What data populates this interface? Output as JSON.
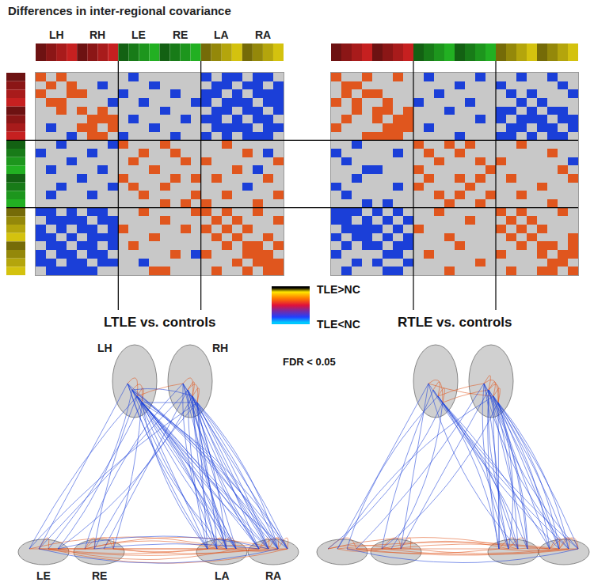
{
  "title": "Differences in inter-regional covariance",
  "regions": [
    {
      "name": "LH",
      "color": "#c62020"
    },
    {
      "name": "RH",
      "color": "#c62020"
    },
    {
      "name": "LE",
      "color": "#22b022"
    },
    {
      "name": "RE",
      "color": "#22b022"
    },
    {
      "name": "LA",
      "color": "#d4c20e"
    },
    {
      "name": "RA",
      "color": "#d4c20e"
    }
  ],
  "color_key": {
    "high_label": "TLE>NC",
    "low_label": "TLE<NC",
    "note": "FDR < 0.05"
  },
  "chart_data": [
    {
      "type": "heatmap",
      "title": "LTLE vs. controls",
      "color_range": [
        -1,
        1
      ],
      "colors": [
        "#1b3fd8",
        "#c8c8c8",
        "#e0561e"
      ],
      "tick_labels": false,
      "cells": [
        [
          1,
          0,
          1,
          0,
          0,
          0,
          0,
          0,
          0,
          -1,
          0,
          0,
          0,
          0,
          0,
          0,
          -1,
          0,
          -1,
          -1,
          0,
          -1,
          -1,
          0
        ],
        [
          0,
          1,
          0,
          1,
          0,
          0,
          -1,
          0,
          0,
          0,
          0,
          -1,
          0,
          0,
          0,
          0,
          0,
          -1,
          -1,
          0,
          -1,
          -1,
          0,
          -1
        ],
        [
          1,
          0,
          0,
          1,
          1,
          0,
          0,
          0,
          -1,
          0,
          0,
          0,
          0,
          -1,
          0,
          0,
          -1,
          -1,
          0,
          -1,
          0,
          -1,
          -1,
          -1
        ],
        [
          0,
          1,
          1,
          0,
          0,
          0,
          0,
          -1,
          0,
          0,
          -1,
          0,
          0,
          0,
          0,
          -1,
          -1,
          0,
          -1,
          -1,
          -1,
          0,
          -1,
          -1
        ],
        [
          0,
          0,
          1,
          0,
          1,
          0,
          1,
          0,
          0,
          0,
          0,
          0,
          -1,
          0,
          0,
          0,
          0,
          -1,
          -1,
          0,
          -1,
          -1,
          0,
          -1
        ],
        [
          0,
          0,
          0,
          0,
          0,
          1,
          1,
          1,
          0,
          -1,
          0,
          0,
          0,
          0,
          -1,
          0,
          -1,
          -1,
          0,
          -1,
          0,
          -1,
          -1,
          0
        ],
        [
          0,
          -1,
          0,
          0,
          1,
          1,
          0,
          1,
          0,
          0,
          0,
          -1,
          0,
          0,
          0,
          0,
          0,
          -1,
          -1,
          -1,
          -1,
          0,
          -1,
          -1
        ],
        [
          0,
          0,
          0,
          -1,
          0,
          1,
          1,
          0,
          -1,
          0,
          0,
          0,
          0,
          -1,
          0,
          0,
          -1,
          0,
          -1,
          0,
          -1,
          -1,
          -1,
          0
        ],
        [
          0,
          0,
          -1,
          0,
          0,
          0,
          0,
          -1,
          1,
          0,
          0,
          0,
          1,
          0,
          0,
          0,
          0,
          0,
          1,
          0,
          0,
          0,
          0,
          0
        ],
        [
          -1,
          0,
          0,
          0,
          0,
          -1,
          0,
          0,
          0,
          0,
          1,
          0,
          0,
          1,
          0,
          0,
          0,
          0,
          0,
          0,
          1,
          0,
          -1,
          0
        ],
        [
          0,
          0,
          0,
          -1,
          0,
          0,
          0,
          0,
          0,
          1,
          0,
          0,
          0,
          0,
          1,
          0,
          1,
          0,
          0,
          0,
          0,
          0,
          0,
          1
        ],
        [
          0,
          -1,
          0,
          0,
          0,
          0,
          -1,
          0,
          0,
          0,
          0,
          1,
          0,
          0,
          0,
          0,
          0,
          0,
          0,
          1,
          0,
          -1,
          0,
          0
        ],
        [
          0,
          0,
          0,
          0,
          -1,
          0,
          0,
          0,
          1,
          0,
          0,
          0,
          0,
          1,
          0,
          1,
          0,
          1,
          0,
          0,
          0,
          0,
          1,
          0
        ],
        [
          0,
          0,
          -1,
          0,
          0,
          0,
          0,
          -1,
          0,
          1,
          0,
          0,
          1,
          0,
          0,
          0,
          0,
          0,
          0,
          0,
          -1,
          0,
          0,
          0
        ],
        [
          0,
          -1,
          0,
          0,
          0,
          -1,
          0,
          0,
          0,
          0,
          1,
          0,
          0,
          0,
          0,
          1,
          0,
          0,
          1,
          0,
          0,
          0,
          0,
          1
        ],
        [
          0,
          0,
          0,
          0,
          0,
          0,
          0,
          0,
          0,
          0,
          0,
          0,
          1,
          0,
          1,
          0,
          1,
          0,
          0,
          0,
          0,
          1,
          0,
          0
        ],
        [
          -1,
          -1,
          0,
          -1,
          0,
          -1,
          -1,
          0,
          0,
          0,
          1,
          0,
          0,
          0,
          0,
          1,
          1,
          0,
          1,
          0,
          0,
          1,
          0,
          0
        ],
        [
          0,
          -1,
          -1,
          -1,
          -1,
          0,
          -1,
          -1,
          0,
          0,
          0,
          0,
          1,
          0,
          0,
          0,
          0,
          1,
          0,
          1,
          0,
          0,
          0,
          1
        ],
        [
          -1,
          0,
          -1,
          0,
          -1,
          -1,
          0,
          -1,
          1,
          0,
          0,
          0,
          0,
          0,
          1,
          0,
          1,
          0,
          1,
          0,
          1,
          0,
          0,
          0
        ],
        [
          -1,
          -1,
          0,
          -1,
          0,
          -1,
          -1,
          -1,
          0,
          0,
          0,
          1,
          0,
          0,
          0,
          0,
          0,
          1,
          0,
          1,
          0,
          0,
          1,
          0
        ],
        [
          0,
          -1,
          -1,
          0,
          -1,
          -1,
          0,
          -1,
          0,
          1,
          0,
          0,
          0,
          0,
          0,
          0,
          0,
          0,
          1,
          0,
          1,
          1,
          0,
          1
        ],
        [
          -1,
          0,
          -1,
          -1,
          0,
          -1,
          -1,
          0,
          0,
          0,
          0,
          0,
          0,
          1,
          0,
          -1,
          1,
          0,
          0,
          0,
          1,
          1,
          1,
          0
        ],
        [
          -1,
          -1,
          0,
          -1,
          -1,
          0,
          -1,
          -1,
          0,
          0,
          -1,
          0,
          0,
          0,
          0,
          0,
          0,
          0,
          0,
          1,
          0,
          1,
          1,
          1
        ],
        [
          0,
          -1,
          -1,
          -1,
          -1,
          -1,
          0,
          0,
          0,
          0,
          0,
          1,
          1,
          0,
          0,
          0,
          0,
          1,
          0,
          0,
          1,
          0,
          1,
          1
        ]
      ]
    },
    {
      "type": "heatmap",
      "title": "RTLE vs. controls",
      "color_range": [
        -1,
        1
      ],
      "colors": [
        "#1b3fd8",
        "#c8c8c8",
        "#e0561e"
      ],
      "tick_labels": false,
      "cells": [
        [
          1,
          0,
          0,
          1,
          0,
          0,
          1,
          0,
          0,
          -1,
          0,
          0,
          0,
          0,
          -1,
          0,
          0,
          0,
          -1,
          0,
          0,
          -1,
          0,
          0
        ],
        [
          0,
          1,
          1,
          0,
          0,
          0,
          0,
          0,
          0,
          0,
          0,
          0,
          -1,
          0,
          0,
          0,
          -1,
          0,
          0,
          0,
          0,
          0,
          -1,
          0
        ],
        [
          0,
          1,
          0,
          1,
          1,
          0,
          0,
          0,
          0,
          0,
          -1,
          0,
          0,
          0,
          0,
          0,
          0,
          -1,
          0,
          -1,
          0,
          0,
          0,
          -1
        ],
        [
          1,
          0,
          1,
          0,
          0,
          1,
          0,
          0,
          -1,
          0,
          0,
          0,
          0,
          -1,
          0,
          0,
          0,
          0,
          -1,
          0,
          -1,
          0,
          0,
          0
        ],
        [
          0,
          0,
          1,
          0,
          1,
          1,
          0,
          1,
          0,
          0,
          0,
          -1,
          0,
          0,
          0,
          0,
          -1,
          -1,
          0,
          -1,
          0,
          -1,
          -1,
          0
        ],
        [
          0,
          1,
          0,
          0,
          1,
          0,
          1,
          1,
          0,
          0,
          0,
          0,
          0,
          0,
          -1,
          0,
          -1,
          0,
          -1,
          -1,
          -1,
          0,
          -1,
          -1
        ],
        [
          1,
          0,
          0,
          0,
          0,
          1,
          1,
          1,
          0,
          -1,
          0,
          0,
          0,
          0,
          0,
          0,
          0,
          -1,
          -1,
          0,
          -1,
          -1,
          0,
          -1
        ],
        [
          0,
          0,
          0,
          1,
          1,
          1,
          1,
          0,
          0,
          0,
          0,
          0,
          -1,
          0,
          0,
          0,
          -1,
          -1,
          0,
          -1,
          0,
          -1,
          -1,
          0
        ],
        [
          0,
          0,
          -1,
          0,
          0,
          0,
          0,
          0,
          1,
          0,
          0,
          1,
          0,
          1,
          0,
          0,
          0,
          0,
          1,
          0,
          0,
          0,
          0,
          0
        ],
        [
          -1,
          0,
          0,
          0,
          0,
          0,
          -1,
          0,
          0,
          1,
          0,
          0,
          1,
          0,
          0,
          0,
          0,
          0,
          0,
          0,
          0,
          1,
          0,
          0
        ],
        [
          0,
          -1,
          0,
          0,
          0,
          0,
          0,
          0,
          0,
          0,
          1,
          0,
          0,
          0,
          1,
          0,
          1,
          0,
          0,
          0,
          0,
          0,
          0,
          -1
        ],
        [
          0,
          0,
          0,
          -1,
          -1,
          0,
          0,
          0,
          1,
          0,
          0,
          0,
          0,
          0,
          0,
          1,
          0,
          0,
          0,
          0,
          0,
          0,
          1,
          0
        ],
        [
          0,
          0,
          -1,
          0,
          0,
          0,
          0,
          0,
          0,
          1,
          0,
          0,
          1,
          0,
          1,
          0,
          0,
          1,
          0,
          0,
          0,
          0,
          0,
          1
        ],
        [
          -1,
          0,
          0,
          0,
          0,
          0,
          -1,
          0,
          1,
          0,
          0,
          0,
          0,
          1,
          0,
          0,
          0,
          0,
          0,
          0,
          1,
          0,
          0,
          0
        ],
        [
          0,
          -1,
          0,
          0,
          0,
          0,
          0,
          0,
          0,
          0,
          1,
          0,
          1,
          0,
          0,
          1,
          0,
          0,
          1,
          0,
          0,
          0,
          0,
          0
        ],
        [
          0,
          0,
          0,
          -1,
          0,
          -1,
          0,
          0,
          0,
          0,
          0,
          1,
          0,
          0,
          1,
          0,
          0,
          0,
          0,
          0,
          0,
          1,
          0,
          0
        ],
        [
          -1,
          -1,
          -1,
          0,
          -1,
          0,
          -1,
          0,
          0,
          0,
          1,
          0,
          0,
          0,
          0,
          0,
          1,
          0,
          1,
          0,
          0,
          0,
          1,
          0
        ],
        [
          -1,
          -1,
          0,
          -1,
          0,
          -1,
          0,
          -1,
          0,
          0,
          0,
          0,
          0,
          1,
          0,
          0,
          0,
          1,
          0,
          1,
          0,
          0,
          0,
          0
        ],
        [
          0,
          -1,
          -1,
          -1,
          -1,
          0,
          -1,
          0,
          1,
          0,
          0,
          0,
          0,
          0,
          0,
          0,
          1,
          0,
          1,
          0,
          1,
          0,
          0,
          0
        ],
        [
          -1,
          0,
          -1,
          -1,
          0,
          -1,
          0,
          -1,
          0,
          0,
          0,
          1,
          0,
          0,
          0,
          0,
          0,
          1,
          0,
          1,
          0,
          0,
          0,
          1
        ],
        [
          0,
          -1,
          0,
          -1,
          -1,
          0,
          -1,
          -1,
          0,
          0,
          0,
          0,
          1,
          0,
          0,
          0,
          0,
          0,
          1,
          0,
          1,
          1,
          0,
          1
        ],
        [
          -1,
          0,
          0,
          0,
          0,
          -1,
          -1,
          0,
          0,
          1,
          0,
          0,
          0,
          0,
          0,
          0,
          1,
          0,
          0,
          0,
          1,
          0,
          1,
          1
        ],
        [
          0,
          0,
          -1,
          0,
          -1,
          0,
          0,
          -1,
          0,
          0,
          0,
          0,
          0,
          0,
          1,
          0,
          0,
          0,
          0,
          0,
          0,
          1,
          1,
          0
        ],
        [
          0,
          -1,
          0,
          0,
          0,
          -1,
          -1,
          0,
          0,
          0,
          0,
          1,
          0,
          0,
          0,
          0,
          0,
          1,
          0,
          0,
          1,
          1,
          0,
          1
        ]
      ]
    }
  ]
}
